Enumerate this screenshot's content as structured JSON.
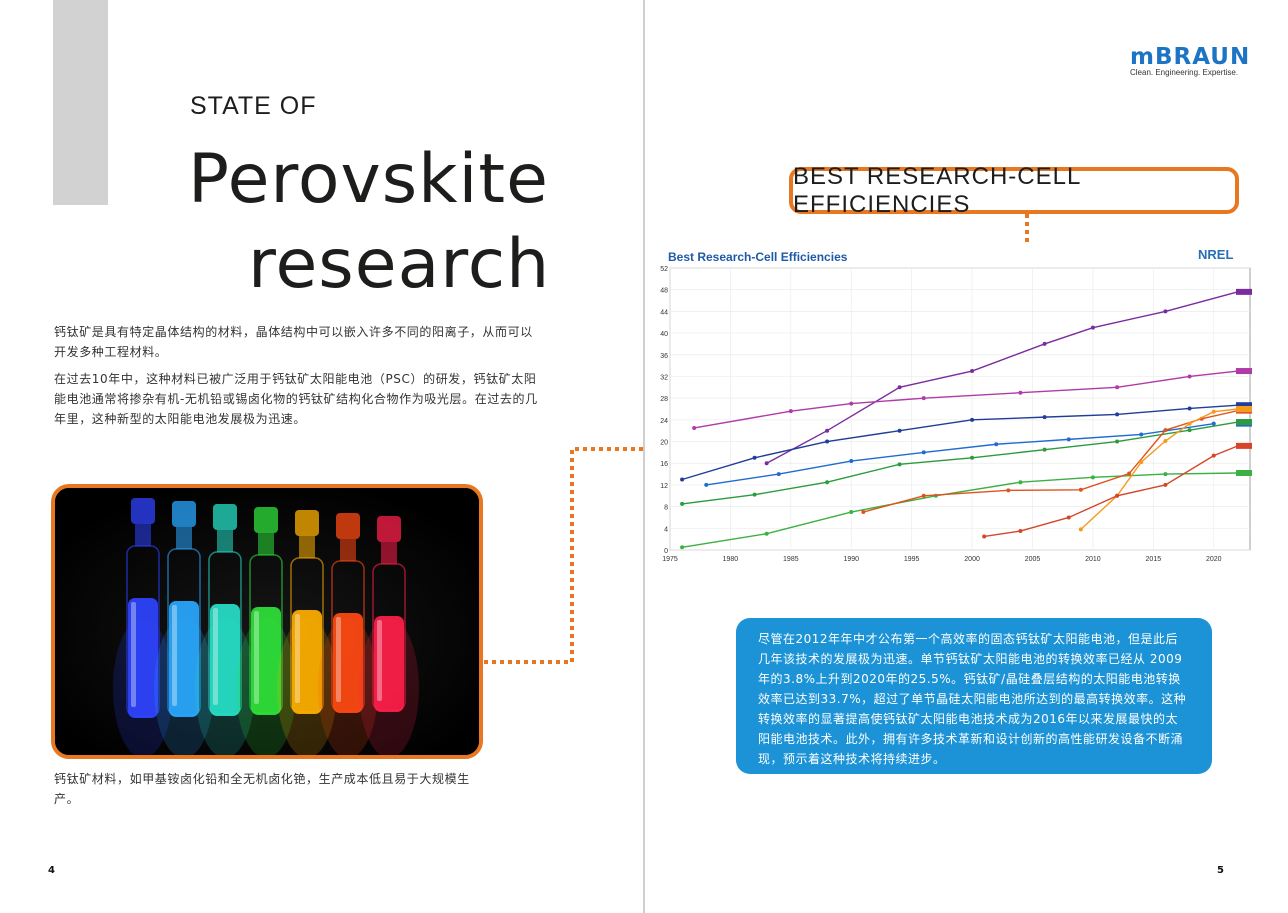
{
  "left_page": {
    "kicker": "STATE OF",
    "title_line1": "Perovskite",
    "title_line2": "research",
    "paragraph1": "钙钛矿是具有特定晶体结构的材料，晶体结构中可以嵌入许多不同的阳离子，从而可以开发多种工程材料。",
    "paragraph2": "在过去10年中，这种材料已被广泛用于钙钛矿太阳能电池（PSC）的研发，钙钛矿太阳能电池通常将掺杂有机-无机铅或锡卤化物的钙钛矿结构化合物作为吸光层。在过去的几年里，这种新型的太阳能电池发展极为迅速。",
    "caption": "钙钛矿材料，如甲基铵卤化铅和全无机卤化铯，生产成本低且易于大规模生产。",
    "page_number": "4",
    "vial_colors": [
      "#2f44ff",
      "#2aa8ff",
      "#27e0c8",
      "#2fe23a",
      "#ffb000",
      "#ff4a12",
      "#ff1f4a"
    ]
  },
  "right_page": {
    "logo_text": "mBRAUN",
    "logo_tagline": "Clean. Engineering. Expertise.",
    "headline": "BEST RESEARCH-CELL EFFICIENCIES",
    "info_text": "尽管在2012年年中才公布第一个高效率的固态钙钛矿太阳能电池，但是此后几年该技术的发展极为迅速。单节钙钛矿太阳能电池的转换效率已经从 2009 年的3.8%上升到2020年的25.5%。钙钛矿/晶硅叠层结构的太阳能电池转换效率已达到33.7%，超过了单节晶硅太阳能电池所达到的最高转换效率。这种转换效率的显著提高使钙钛矿太阳能电池技术成为2016年以来发展最快的太阳能电池技术。此外，拥有许多技术革新和设计创新的高性能研发设备不断涌现，预示着这种技术将持续进步。",
    "page_number": "5"
  },
  "chart_data": {
    "type": "line",
    "title": "Best Research-Cell Efficiencies",
    "brand": "NREL",
    "xlim": [
      1975,
      2023
    ],
    "ylim": [
      0,
      52
    ],
    "x_ticks": [
      "1975",
      "1980",
      "1985",
      "1990",
      "1995",
      "2000",
      "2005",
      "2010",
      "2015",
      "2020"
    ],
    "y_ticks": [
      "0",
      "4",
      "8",
      "12",
      "16",
      "20",
      "24",
      "28",
      "32",
      "36",
      "40",
      "44",
      "48",
      "52"
    ],
    "grid": true,
    "series": [
      {
        "color": "#7a2c9e",
        "x": [
          1983,
          1988,
          1994,
          2000,
          2006,
          2010,
          2016,
          2022
        ],
        "y": [
          16,
          22,
          30,
          33,
          38,
          41,
          44,
          47.6
        ]
      },
      {
        "color": "#b03aa8",
        "x": [
          1977,
          1985,
          1990,
          1996,
          2004,
          2012,
          2018,
          2022
        ],
        "y": [
          22.5,
          25.6,
          27,
          28,
          29,
          30,
          32,
          33
        ]
      },
      {
        "color": "#1f3d99",
        "x": [
          1976,
          1982,
          1988,
          1994,
          2000,
          2006,
          2012,
          2018,
          2022
        ],
        "y": [
          13,
          17,
          20,
          22,
          24,
          24.5,
          25,
          26.1,
          26.7
        ]
      },
      {
        "color": "#1f6bd1",
        "x": [
          1978,
          1984,
          1990,
          1996,
          2002,
          2008,
          2014,
          2020
        ],
        "y": [
          12,
          14,
          16.4,
          18,
          19.5,
          20.4,
          21.3,
          23.3
        ]
      },
      {
        "color": "#2c9b3e",
        "x": [
          1976,
          1982,
          1988,
          1994,
          2000,
          2006,
          2012,
          2018,
          2022
        ],
        "y": [
          8.5,
          10.2,
          12.5,
          15.8,
          17,
          18.5,
          20,
          22.1,
          23.6
        ]
      },
      {
        "color": "#3cb043",
        "x": [
          1976,
          1983,
          1990,
          1997,
          2004,
          2010,
          2016,
          2022
        ],
        "y": [
          0.5,
          3,
          7,
          10,
          12.5,
          13.4,
          14,
          14.2
        ]
      },
      {
        "color": "#e0531d",
        "x": [
          1991,
          1996,
          2003,
          2009,
          2013,
          2016,
          2019,
          2022
        ],
        "y": [
          7,
          10,
          11,
          11.1,
          14.1,
          22.1,
          24.2,
          25.7
        ]
      },
      {
        "color": "#f59a1c",
        "x": [
          2009,
          2012,
          2014,
          2016,
          2018,
          2020,
          2022
        ],
        "y": [
          3.8,
          10,
          16.2,
          20.1,
          23.3,
          25.5,
          26
        ]
      },
      {
        "color": "#d4452a",
        "x": [
          2001,
          2004,
          2008,
          2012,
          2016,
          2020,
          2022
        ],
        "y": [
          2.5,
          3.5,
          6,
          10,
          12,
          17.4,
          19.2
        ]
      }
    ]
  }
}
